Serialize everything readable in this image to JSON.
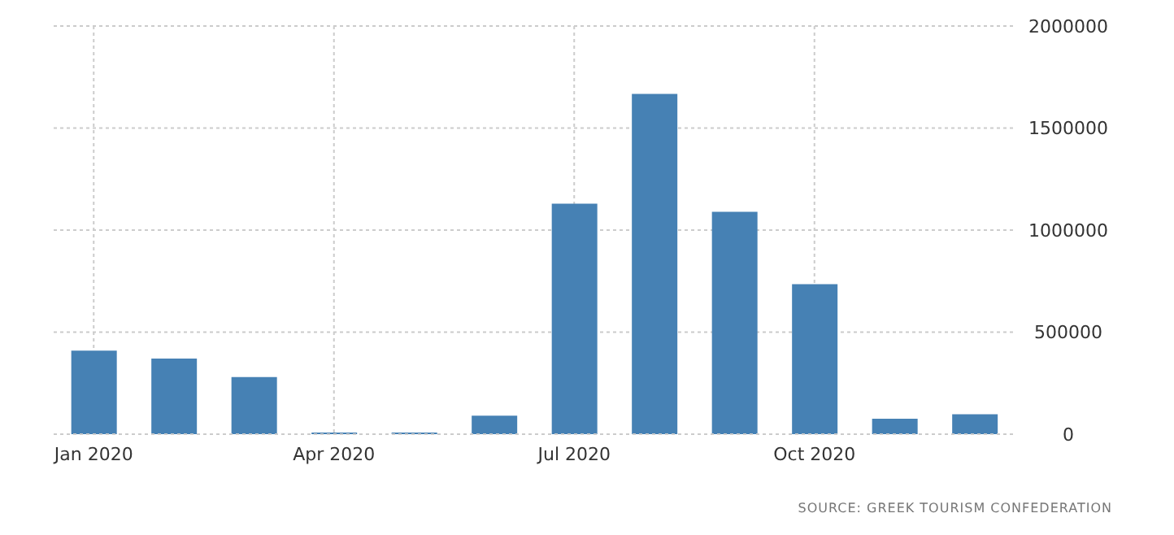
{
  "chart_data": {
    "type": "bar",
    "categories": [
      "Jan 2020",
      null,
      null,
      "Apr 2020",
      null,
      null,
      "Jul 2020",
      null,
      null,
      "Oct 2020",
      null,
      null
    ],
    "values": [
      409000,
      371000,
      280000,
      8000,
      8000,
      91000,
      1129000,
      1667000,
      1090000,
      735000,
      76000,
      98000
    ],
    "color": "#4681b4",
    "ylim": [
      0,
      2000000
    ],
    "yticks": [
      0,
      500000,
      1000000,
      1500000,
      2000000
    ],
    "grid": true,
    "annotations": [
      "SOURCE: GREEK TOURISM CONFEDERATION"
    ]
  }
}
